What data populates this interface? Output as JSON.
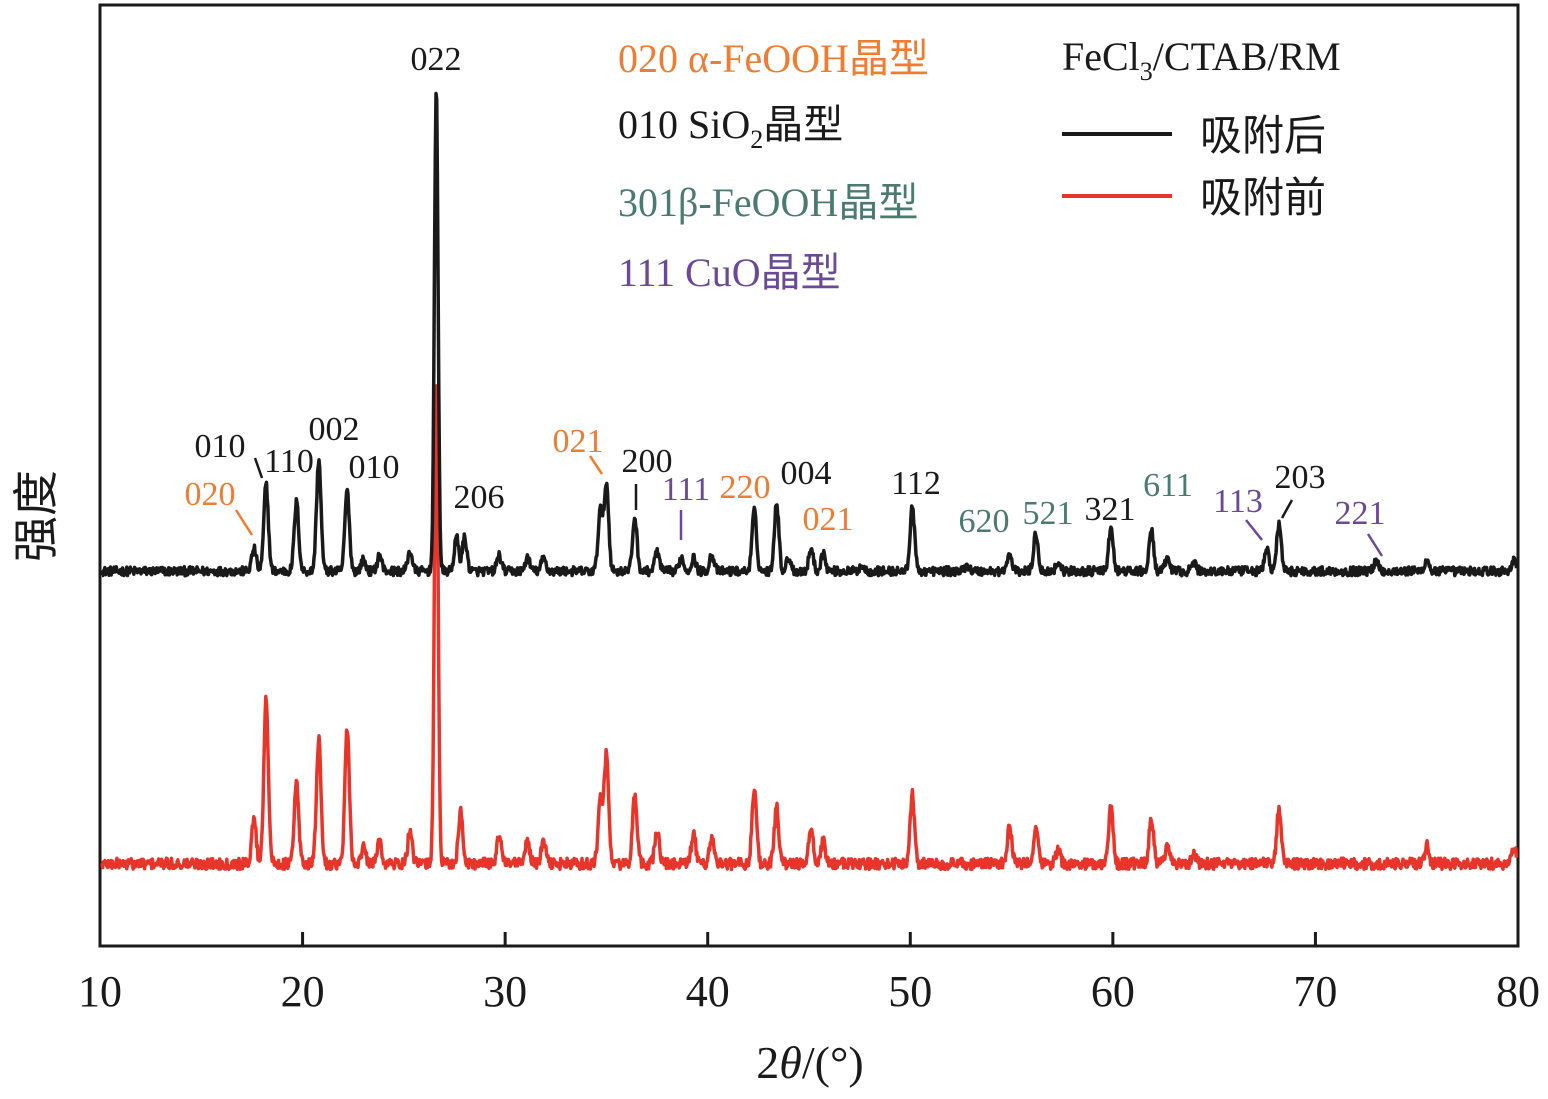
{
  "chart_data": {
    "type": "line",
    "title": "",
    "xlabel": "2θ/(°)",
    "ylabel": "强度",
    "xlim": [
      10,
      80
    ],
    "x_ticks": [
      "10",
      "20",
      "30",
      "40",
      "50",
      "60",
      "70",
      "80"
    ],
    "grid": false,
    "legend_placement": "top-right",
    "legend": {
      "title_main": "FeCl",
      "title_sub": "3",
      "title_rest": "/CTAB/RM",
      "entries": [
        {
          "label": "吸附后",
          "color": "#1a1a1a"
        },
        {
          "label": "吸附前",
          "color": "#e8352b"
        }
      ]
    },
    "phase_key": [
      {
        "id": "alpha",
        "color": "#ee7d31",
        "code": "020",
        "text": " α-FeOOH晶型"
      },
      {
        "id": "sio2",
        "color": "#1a1a1a",
        "code": "010",
        "text": " SiO",
        "sub": "2",
        "text_after": "晶型"
      },
      {
        "id": "beta",
        "color": "#4a7a70",
        "code": "301",
        "text": "β-FeOOH晶型"
      },
      {
        "id": "cuo",
        "color": "#6a4a97",
        "code": "111",
        "text": " CuO晶型"
      }
    ],
    "series": [
      {
        "name": "吸附后",
        "color": "#1a1a1a",
        "baseline": 0,
        "noise": 4,
        "peaks": [
          [
            17.6,
            20
          ],
          [
            18.2,
            78
          ],
          [
            19.7,
            62
          ],
          [
            20.8,
            100
          ],
          [
            22.2,
            72
          ],
          [
            23.0,
            10
          ],
          [
            23.8,
            14
          ],
          [
            25.3,
            18
          ],
          [
            26.6,
            430
          ],
          [
            27.6,
            30
          ],
          [
            28.0,
            30
          ],
          [
            29.7,
            14
          ],
          [
            31.1,
            12
          ],
          [
            31.9,
            12
          ],
          [
            34.7,
            55
          ],
          [
            35.0,
            78
          ],
          [
            36.4,
            48
          ],
          [
            37.5,
            18
          ],
          [
            38.7,
            12
          ],
          [
            39.3,
            12
          ],
          [
            40.2,
            15
          ],
          [
            42.3,
            54
          ],
          [
            43.4,
            62
          ],
          [
            44.0,
            12
          ],
          [
            45.1,
            20
          ],
          [
            45.7,
            16
          ],
          [
            47.6,
            5
          ],
          [
            50.1,
            58
          ],
          [
            52.8,
            6
          ],
          [
            54.9,
            15
          ],
          [
            56.2,
            34
          ],
          [
            57.3,
            8
          ],
          [
            59.9,
            38
          ],
          [
            61.9,
            36
          ],
          [
            62.7,
            12
          ],
          [
            64.0,
            8
          ],
          [
            67.6,
            20
          ],
          [
            68.2,
            42
          ],
          [
            73.0,
            10
          ],
          [
            75.5,
            10
          ],
          [
            79.8,
            10
          ]
        ]
      },
      {
        "name": "吸附前",
        "color": "#e8352b",
        "baseline": 0,
        "noise": 5,
        "peaks": [
          [
            17.6,
            40
          ],
          [
            18.2,
            150
          ],
          [
            19.7,
            72
          ],
          [
            20.8,
            112
          ],
          [
            22.2,
            118
          ],
          [
            23.0,
            14
          ],
          [
            23.8,
            20
          ],
          [
            25.3,
            28
          ],
          [
            26.6,
            435
          ],
          [
            27.8,
            46
          ],
          [
            29.7,
            26
          ],
          [
            31.1,
            20
          ],
          [
            31.9,
            20
          ],
          [
            34.7,
            58
          ],
          [
            35.0,
            96
          ],
          [
            36.4,
            60
          ],
          [
            37.5,
            30
          ],
          [
            39.3,
            26
          ],
          [
            40.2,
            24
          ],
          [
            42.3,
            68
          ],
          [
            43.4,
            50
          ],
          [
            45.1,
            30
          ],
          [
            45.7,
            20
          ],
          [
            50.1,
            62
          ],
          [
            54.9,
            32
          ],
          [
            56.2,
            34
          ],
          [
            57.3,
            12
          ],
          [
            59.9,
            50
          ],
          [
            61.9,
            42
          ],
          [
            62.7,
            18
          ],
          [
            64.0,
            10
          ],
          [
            68.2,
            48
          ],
          [
            75.5,
            16
          ],
          [
            79.8,
            16
          ]
        ]
      }
    ],
    "annotations": [
      {
        "text": "022",
        "color": "#1a1a1a"
      },
      {
        "text": "010",
        "color": "#1a1a1a"
      },
      {
        "text": "110",
        "color": "#1a1a1a"
      },
      {
        "text": "002",
        "color": "#1a1a1a"
      },
      {
        "text": "010",
        "color": "#1a1a1a"
      },
      {
        "text": "020",
        "color": "#ee7d31"
      },
      {
        "text": "206",
        "color": "#1a1a1a"
      },
      {
        "text": "021",
        "color": "#ee7d31"
      },
      {
        "text": "200",
        "color": "#1a1a1a"
      },
      {
        "text": "111",
        "color": "#6a4a97"
      },
      {
        "text": "220",
        "color": "#ee7d31"
      },
      {
        "text": "004",
        "color": "#1a1a1a"
      },
      {
        "text": "021",
        "color": "#ee7d31"
      },
      {
        "text": "112",
        "color": "#1a1a1a"
      },
      {
        "text": "620",
        "color": "#4a7a70"
      },
      {
        "text": "521",
        "color": "#4a7a70"
      },
      {
        "text": "321",
        "color": "#1a1a1a"
      },
      {
        "text": "611",
        "color": "#4a7a70"
      },
      {
        "text": "113",
        "color": "#6a4a97"
      },
      {
        "text": "203",
        "color": "#1a1a1a"
      },
      {
        "text": "221",
        "color": "#6a4a97"
      }
    ]
  }
}
